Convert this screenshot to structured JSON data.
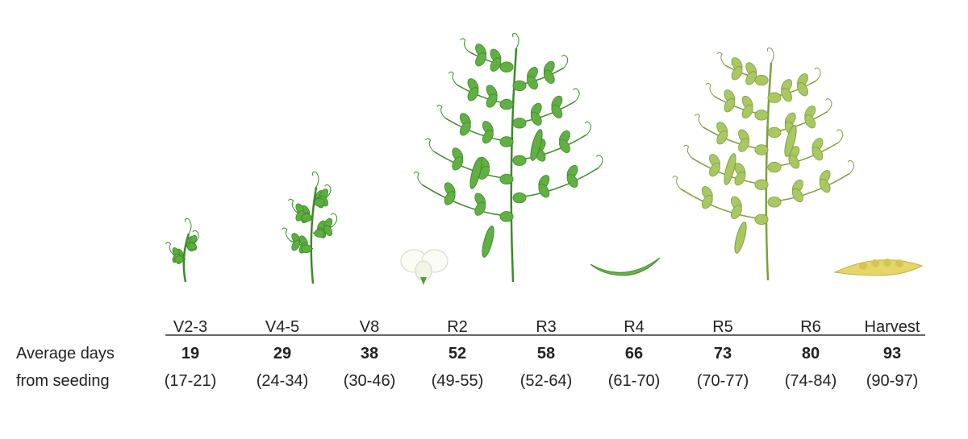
{
  "row_label": [
    "Average days",
    "from seeding"
  ],
  "stages": [
    {
      "name": "V2-3",
      "days": 19,
      "range": "(17-21)"
    },
    {
      "name": "V4-5",
      "days": 29,
      "range": "(24-34)"
    },
    {
      "name": "V8",
      "days": 38,
      "range": "(30-46)"
    },
    {
      "name": "R2",
      "days": 52,
      "range": "(49-55)"
    },
    {
      "name": "R3",
      "days": 58,
      "range": "(52-64)"
    },
    {
      "name": "R4",
      "days": 66,
      "range": "(61-70)"
    },
    {
      "name": "R5",
      "days": 73,
      "range": "(70-77)"
    },
    {
      "name": "R6",
      "days": 80,
      "range": "(74-84)"
    },
    {
      "name": "Harvest",
      "days": 93,
      "range": "(90-97)"
    }
  ]
}
